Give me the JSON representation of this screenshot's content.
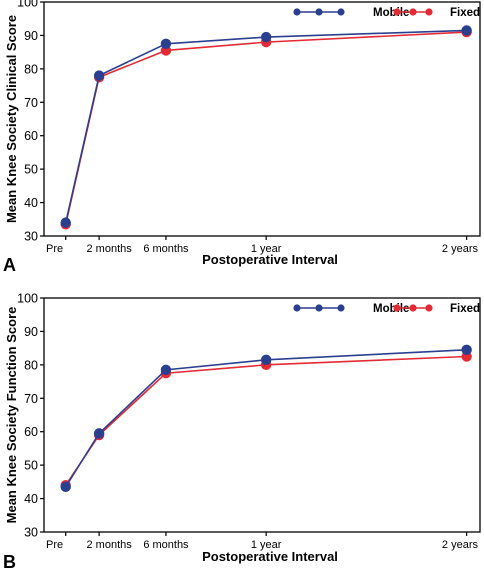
{
  "chart_data": [
    {
      "type": "line",
      "panel_label": "A",
      "xlabel": "Postoperative Interval",
      "ylabel": "Mean Knee Society Clinical Score",
      "categories": [
        "Pre",
        "2 months",
        "6 months",
        "1 year",
        "2 years"
      ],
      "x_months": [
        0,
        2,
        6,
        12,
        24
      ],
      "ylim": [
        30,
        100
      ],
      "yticks": [
        30,
        40,
        50,
        60,
        70,
        80,
        90,
        100
      ],
      "series": [
        {
          "name": "Mobile",
          "color": "#2b3f8f",
          "values": [
            34,
            78,
            87.5,
            89.5,
            91.5
          ]
        },
        {
          "name": "Fixed",
          "color": "#e32b36",
          "values": [
            33.5,
            77.5,
            85.5,
            88,
            91
          ]
        }
      ],
      "legend_position": "top-right",
      "grid": false
    },
    {
      "type": "line",
      "panel_label": "B",
      "xlabel": "Postoperative Interval",
      "ylabel": "Mean Knee Society Function Score",
      "categories": [
        "Pre",
        "2 months",
        "6 months",
        "1 year",
        "2 years"
      ],
      "x_months": [
        0,
        2,
        6,
        12,
        24
      ],
      "ylim": [
        30,
        100
      ],
      "yticks": [
        30,
        40,
        50,
        60,
        70,
        80,
        90,
        100
      ],
      "series": [
        {
          "name": "Mobile",
          "color": "#2b3f8f",
          "values": [
            43.5,
            59.5,
            78.5,
            81.5,
            84.5
          ]
        },
        {
          "name": "Fixed",
          "color": "#e32b36",
          "values": [
            44,
            59,
            77.5,
            80,
            82.5
          ]
        }
      ],
      "legend_position": "top-right",
      "grid": false
    }
  ]
}
